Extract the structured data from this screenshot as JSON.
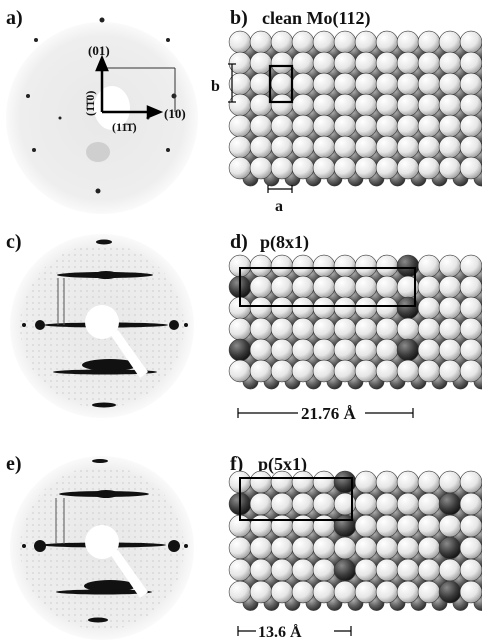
{
  "panels": [
    {
      "letter": "a)",
      "kind": "leed",
      "title": ""
    },
    {
      "letter": "b)",
      "kind": "model",
      "title": "clean Mo(112)"
    },
    {
      "letter": "c)",
      "kind": "leed",
      "title": ""
    },
    {
      "letter": "d)",
      "kind": "model",
      "title": "p(8x1)"
    },
    {
      "letter": "e)",
      "kind": "leed",
      "title": ""
    },
    {
      "letter": "f)",
      "kind": "model",
      "title": "p(5x1)"
    }
  ],
  "leed_a_labels": {
    "spot_01": "(01)",
    "spot_10": "(10)",
    "dir_110": "(1̄1̄0)",
    "dir_111": "(11̄1̄)"
  },
  "model_b_labels": {
    "b": "b",
    "a": "a"
  },
  "scale_d": "21.76 Å",
  "scale_f": "13.6 Å",
  "colors": {
    "light_atom": "#e9e9e9",
    "dark_atom": "#5c5c5c",
    "ink": "#111111",
    "leed_bg": "#f3f3f3"
  }
}
